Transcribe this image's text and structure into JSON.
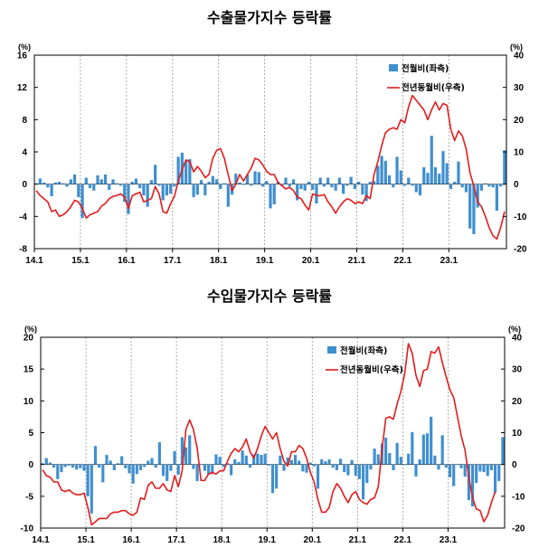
{
  "colors": {
    "bar": "#3f8fcf",
    "line": "#e31c1c",
    "grid": "#999999"
  },
  "chart_data": [
    {
      "type": "bar",
      "title": "수출물가지수 등락률",
      "y_left_unit": "(%)",
      "y_right_unit": "(%)",
      "ylim_left": [
        -8,
        16
      ],
      "ylim_right": [
        -20,
        40
      ],
      "yticks_left": [
        "-8",
        "-4",
        "0",
        "4",
        "8",
        "12",
        "16"
      ],
      "yticks_right": [
        "-20",
        "-10",
        "0",
        "10",
        "20",
        "30",
        "40"
      ],
      "xticks": [
        "14.1",
        "15.1",
        "16.1",
        "17.1",
        "18.1",
        "19.1",
        "20.1",
        "21.1",
        "22.1",
        "23.1"
      ],
      "legend_position": "top-right",
      "grid": "vertical dashed at January",
      "series": [
        {
          "name": "전월비(좌측)",
          "axis": "left",
          "mark": "bar",
          "values": [
            0.1,
            0.7,
            0.2,
            -0.4,
            -1.5,
            0.2,
            0.3,
            0.1,
            -0.3,
            0.6,
            1.2,
            -1.6,
            -4.2,
            0.8,
            -0.5,
            -0.8,
            1.1,
            0.6,
            1.2,
            -0.7,
            0.6,
            0.1,
            -0.2,
            -2.2,
            -3.7,
            0.3,
            0.7,
            -0.5,
            -1.4,
            -2.8,
            0.5,
            2.4,
            -0.2,
            -2.0,
            -1.4,
            -1.2,
            -0.3,
            3.4,
            3.9,
            2.9,
            3.1,
            -1.6,
            -1.3,
            0.5,
            -1.4,
            0.3,
            1.0,
            0.6,
            -0.6,
            0.1,
            -2.8,
            -1.3,
            1.3,
            0.2,
            -0.1,
            1.2,
            -0.2,
            1.6,
            1.5,
            -0.3,
            0.4,
            -3.0,
            -2.5,
            0.3,
            -0.2,
            0.8,
            -0.3,
            0.6,
            -2.0,
            -0.6,
            -0.8,
            0.3,
            -0.7,
            -2.4,
            0.8,
            -0.3,
            0.8,
            -0.4,
            -0.8,
            0.8,
            -1.2,
            -0.2,
            0.9,
            -0.6,
            0.3,
            -1.3,
            -2.1,
            0.3,
            0.4,
            2.3,
            3.5,
            2.9,
            1.1,
            -0.4,
            3.4,
            1.7,
            -0.2,
            0.8,
            -0.2,
            -1.0,
            -1.4,
            2.1,
            1.4,
            6.0,
            2.1,
            1.3,
            4.1,
            2.6,
            -0.6,
            0.3,
            2.8,
            -0.4,
            -1.0,
            -5.5,
            -6.2,
            -2.9,
            -0.8,
            0.1,
            -0.3,
            -0.4,
            -3.3,
            -0.3,
            4.2
          ]
        },
        {
          "name": "전년동월비(우측)",
          "axis": "right",
          "mark": "line",
          "values": [
            -2,
            -3.5,
            -4.5,
            -5.5,
            -8.5,
            -8,
            -10,
            -9.5,
            -8.5,
            -7,
            -5,
            -5.5,
            -7.5,
            -10.5,
            -9.5,
            -9,
            -8.5,
            -6.8,
            -6,
            -4.5,
            -3.8,
            -3.5,
            -3,
            -4,
            -7.5,
            -3.6,
            -3,
            -2.5,
            -5.5,
            -5,
            -4.5,
            -0.7,
            -3,
            -8.5,
            -9,
            -6,
            -3.8,
            1,
            4.5,
            7.5,
            7,
            3.8,
            5.5,
            4,
            2,
            3,
            8,
            10.5,
            11,
            8,
            3,
            -2,
            0,
            3,
            1,
            3,
            5,
            8,
            7.5,
            6,
            4,
            3,
            3,
            0.5,
            -0.5,
            -1.5,
            -1,
            -2,
            -4,
            -4.5,
            -6.5,
            -8,
            -3,
            -3.5,
            -3.6,
            -3.2,
            -5.5,
            -7,
            -9,
            -7,
            -5.5,
            -4.5,
            -5,
            -6,
            -5.5,
            -6,
            -3.5,
            -4.5,
            3,
            7,
            12,
            16,
            17,
            17.5,
            17,
            20,
            19,
            24,
            27.5,
            26,
            24.5,
            23,
            20,
            23,
            25.5,
            23,
            25,
            24.5,
            17,
            13.5,
            16.5,
            15,
            11,
            3.5,
            -0.5,
            -5.5,
            -7,
            -10,
            -13.5,
            -16,
            -17,
            -13.5,
            -8.5
          ]
        }
      ]
    },
    {
      "type": "bar",
      "title": "수입물가지수 등락률",
      "y_left_unit": "(%)",
      "y_right_unit": "(%)",
      "ylim_left": [
        -10,
        20
      ],
      "ylim_right": [
        -20,
        40
      ],
      "yticks_left": [
        "-10",
        "-5",
        "0",
        "5",
        "10",
        "15",
        "20"
      ],
      "yticks_right": [
        "-20",
        "-10",
        "0",
        "10",
        "20",
        "30",
        "40"
      ],
      "xticks": [
        "14.1",
        "15.1",
        "16.1",
        "17.1",
        "18.1",
        "19.1",
        "20.1",
        "21.1",
        "22.1",
        "23.1"
      ],
      "legend_position": "top-right",
      "grid": "vertical dashed at January",
      "series": [
        {
          "name": "전월비(좌측)",
          "axis": "left",
          "mark": "bar",
          "values": [
            0.2,
            1.0,
            0.3,
            -0.5,
            -2.3,
            -1.2,
            -0.4,
            -0.2,
            -0.5,
            -0.8,
            -0.6,
            -1.0,
            -5.0,
            -7.7,
            2.9,
            -0.5,
            -2.8,
            1.5,
            0.6,
            -0.9,
            0.2,
            1.3,
            -0.6,
            -1.4,
            -3.0,
            -1.5,
            -0.9,
            -0.4,
            0.6,
            1.0,
            -0.5,
            3.5,
            -1.8,
            -2.6,
            -1.0,
            2.1,
            -1.6,
            4.3,
            2.7,
            4.6,
            -0.7,
            -2.6,
            -0.1,
            -1.0,
            -1.6,
            -1.5,
            1.6,
            1.2,
            -0.4,
            0.2,
            -1.7,
            0.8,
            0.4,
            2.2,
            1.4,
            -0.5,
            1.6,
            1.7,
            1.5,
            1.7,
            -0.2,
            -4.5,
            -3.8,
            1.4,
            -1.0,
            1.1,
            0.7,
            1.5,
            0.6,
            -1.1,
            -1.3,
            0.3,
            -0.3,
            -3.8,
            0.8,
            0.5,
            0.8,
            -0.5,
            -0.9,
            0.9,
            -1.2,
            -1.7,
            0.7,
            -1.8,
            -2.3,
            -5.5,
            -2.9,
            -0.8,
            2.5,
            1.6,
            3.3,
            4.2,
            1.8,
            -0.9,
            3.4,
            1.2,
            -0.1,
            1.7,
            5.1,
            -1.9,
            0.8,
            4.7,
            4.9,
            7.5,
            1.4,
            -0.8,
            4.6,
            -0.5,
            -2.0,
            -3.4,
            -0.1,
            -0.6,
            -1.9,
            -5.6,
            -6.6,
            -2.9,
            -1.1,
            -1.2,
            -1.8,
            -0.9,
            -4.4,
            -2.6,
            4.3
          ]
        },
        {
          "name": "전년동월비(우측)",
          "axis": "right",
          "mark": "line",
          "values": [
            -1.7,
            -3.5,
            -4,
            -5.5,
            -5.5,
            -8,
            -8.5,
            -8,
            -9,
            -9.5,
            -9.5,
            -9,
            -13.5,
            -19,
            -18,
            -17,
            -17,
            -17,
            -15.5,
            -15,
            -15,
            -14.5,
            -14.5,
            -15.5,
            -16,
            -15,
            -10.5,
            -11,
            -6.5,
            -5.5,
            -7.5,
            -7.5,
            -6,
            -8,
            -8.5,
            -3.5,
            -7,
            -2,
            11,
            14,
            11,
            5,
            -5,
            -5,
            -3,
            -2.5,
            -3,
            -2,
            -2,
            1,
            3.5,
            5,
            4,
            5.5,
            8,
            4,
            2,
            5,
            9,
            12,
            10,
            8,
            10,
            5,
            1,
            -0.5,
            4,
            4,
            6,
            5,
            2,
            -2.5,
            -5.5,
            -11,
            -15,
            -15,
            -13.5,
            -8.5,
            -6,
            -7.5,
            -10,
            -12,
            -9.5,
            -8.5,
            -11,
            -12,
            -12.5,
            -11,
            -10.5,
            -7,
            5,
            14.5,
            15,
            14.2,
            19,
            23,
            28.5,
            38,
            35,
            28,
            24.5,
            29.5,
            30,
            35.5,
            35,
            37,
            32,
            27.5,
            23.5,
            21,
            15,
            9,
            4.5,
            -4,
            -10.5,
            -14,
            -14.5,
            -18,
            -16,
            -12,
            -8.5
          ]
        }
      ]
    }
  ]
}
